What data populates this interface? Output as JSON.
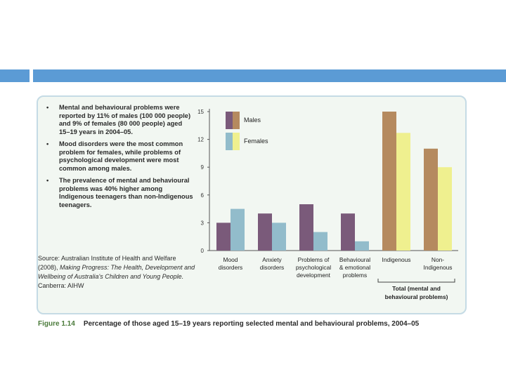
{
  "bullets": [
    "Mental and behavioural problems were reported by 11% of males (100 000 people) and 9% of females (80 000 people) aged 15–19 years in 2004–05.",
    "Mood disorders were the most common problem for females, while problems of psychological development were most common among males.",
    "The prevalence of mental and behavioural problems was 40% higher among Indigenous teenagers than non-Indigenous teenagers."
  ],
  "bullet_symbol": "•",
  "source": {
    "prefix": "Source: Australian Institute of Health and Welfare (2008), ",
    "title": "Making Progress: The Health, Development and Wellbeing of Australia's Children and Young People.",
    "suffix": " Canberra: AIHW"
  },
  "caption": {
    "figure": "Figure 1.14",
    "text": "Percentage of those aged 15–19 years reporting selected mental and behavioural problems, 2004–05"
  },
  "chart_data": {
    "type": "bar",
    "categories": [
      [
        "Mood",
        "disorders"
      ],
      [
        "Anxiety",
        "disorders"
      ],
      [
        "Problems of",
        "psychological",
        "development"
      ],
      [
        "Behavioural",
        "& emotional",
        "problems"
      ],
      [
        "Indigenous"
      ],
      [
        "Non-",
        "Indigenous"
      ]
    ],
    "series": [
      {
        "name": "Males",
        "values": [
          3,
          4,
          5,
          4,
          15,
          11
        ],
        "colors": [
          "#7a5a7a",
          "#7a5a7a",
          "#7a5a7a",
          "#7a5a7a",
          "#b58a5f",
          "#b58a5f"
        ]
      },
      {
        "name": "Females",
        "values": [
          4.5,
          3,
          2,
          1,
          12.7,
          9
        ],
        "colors": [
          "#92bccb",
          "#92bccb",
          "#92bccb",
          "#92bccb",
          "#eff08f",
          "#eff08f"
        ]
      }
    ],
    "legend": [
      {
        "label": "Males",
        "colors": [
          "#7a5a7a",
          "#b58a5f"
        ]
      },
      {
        "label": "Females",
        "colors": [
          "#92bccb",
          "#eff08f"
        ]
      }
    ],
    "yticks": [
      0,
      3,
      6,
      9,
      12,
      15
    ],
    "ylim": [
      0,
      15
    ],
    "group_label": [
      "Total (mental and",
      "behavioural problems)"
    ],
    "legend_position": "top-left",
    "grid": false
  }
}
